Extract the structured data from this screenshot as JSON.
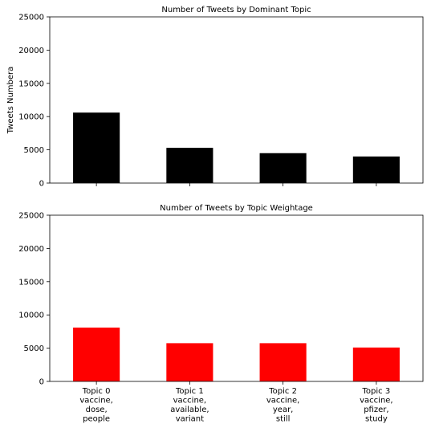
{
  "chart_data": [
    {
      "type": "bar",
      "title": "Number of Tweets by Dominant Topic",
      "ylabel": "Tweets Numbera",
      "xlabel": "",
      "categories": [
        [
          "Topic 0",
          "vaccine,",
          "dose,",
          "people"
        ],
        [
          "Topic 1",
          "vaccine,",
          "available,",
          "variant"
        ],
        [
          "Topic 2",
          "vaccine,",
          "year,",
          "still"
        ],
        [
          "Topic 3",
          "vaccine,",
          "pfizer,",
          "study"
        ]
      ],
      "values": [
        10600,
        5300,
        4500,
        4000
      ],
      "ylim": [
        0,
        25000
      ],
      "yticks": [
        0,
        5000,
        10000,
        15000,
        20000,
        25000
      ],
      "bar_color": "#000000",
      "show_xticklabels": false
    },
    {
      "type": "bar",
      "title": "Number of Tweets by Topic Weightage",
      "ylabel": "",
      "xlabel": "",
      "categories": [
        [
          "Topic 0",
          "vaccine,",
          "dose,",
          "people"
        ],
        [
          "Topic 1",
          "vaccine,",
          "available,",
          "variant"
        ],
        [
          "Topic 2",
          "vaccine,",
          "year,",
          "still"
        ],
        [
          "Topic 3",
          "vaccine,",
          "pfizer,",
          "study"
        ]
      ],
      "values": [
        8100,
        5750,
        5750,
        5100
      ],
      "ylim": [
        0,
        25000
      ],
      "yticks": [
        0,
        5000,
        10000,
        15000,
        20000,
        25000
      ],
      "bar_color": "#ff0000",
      "show_xticklabels": true
    }
  ]
}
